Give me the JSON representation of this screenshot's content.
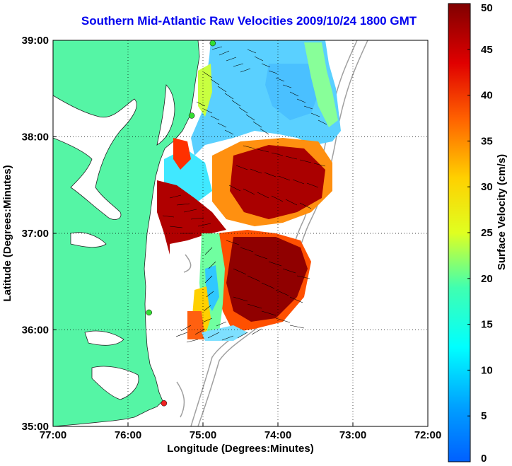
{
  "title": "Southern Mid-Atlantic Raw Velocities 2009/10/24 1800 GMT",
  "map": {
    "x_axis_label": "Longitude (Degrees:Minutes)",
    "y_axis_label": "Latitude (Degrees:Minutes)",
    "x_ticks": [
      {
        "lon": -77,
        "label": "77:00"
      },
      {
        "lon": -76,
        "label": "76:00"
      },
      {
        "lon": -75,
        "label": "75:00"
      },
      {
        "lon": -74,
        "label": "74:00"
      },
      {
        "lon": -73,
        "label": "73:00"
      },
      {
        "lon": -72,
        "label": "72:00"
      }
    ],
    "y_ticks": [
      {
        "lat": 39,
        "label": "39:00"
      },
      {
        "lat": 38,
        "label": "38:00"
      },
      {
        "lat": 37,
        "label": "37:00"
      },
      {
        "lat": 36,
        "label": "36:00"
      },
      {
        "lat": 35,
        "label": "35:00"
      }
    ],
    "lon_range": [
      -77,
      -72
    ],
    "lat_range": [
      35,
      39
    ],
    "grid": true,
    "land_color": "#55f5a5",
    "water_color": "#ffffff",
    "stations": [
      {
        "lon": -74.87,
        "lat": 38.97,
        "color": "#33dd33"
      },
      {
        "lon": -75.15,
        "lat": 38.22,
        "color": "#33dd33"
      },
      {
        "lon": -75.72,
        "lat": 36.18,
        "color": "#33dd33"
      },
      {
        "lon": -75.52,
        "lat": 35.24,
        "color": "#ee2222"
      }
    ]
  },
  "colorbar": {
    "label": "Surface Velocity (cm/s)",
    "min": 0,
    "max": 50,
    "ticks": [
      {
        "value": 50,
        "label": "50"
      },
      {
        "value": 45,
        "label": "45"
      },
      {
        "value": 40,
        "label": "40"
      },
      {
        "value": 35,
        "label": "35"
      },
      {
        "value": 30,
        "label": "30"
      },
      {
        "value": 25,
        "label": "25"
      },
      {
        "value": 20,
        "label": "20"
      },
      {
        "value": 15,
        "label": "15"
      },
      {
        "value": 10,
        "label": "10"
      },
      {
        "value": 5,
        "label": "5"
      },
      {
        "value": 0,
        "label": "0"
      }
    ],
    "colormap": "jet"
  }
}
